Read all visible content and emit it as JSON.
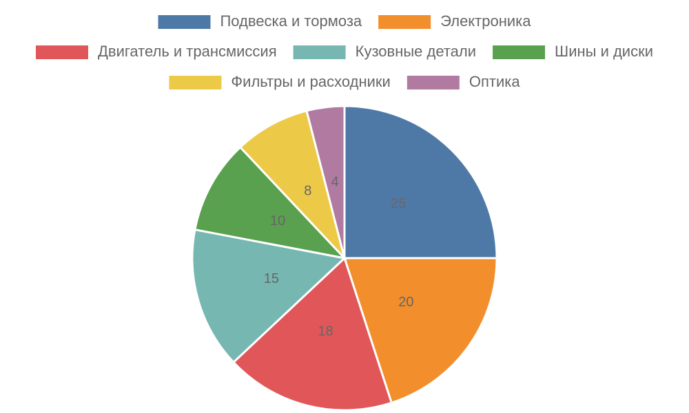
{
  "chart_data": {
    "type": "pie",
    "categories": [
      "Подвеска и тормоза",
      "Электроника",
      "Двигатель и трансмиссия",
      "Кузовные детали",
      "Шины и диски",
      "Фильтры и расходники",
      "Оптика"
    ],
    "values": [
      25,
      20,
      18,
      15,
      10,
      8,
      4
    ],
    "colors": [
      "#4e79a7",
      "#f28e2b",
      "#e15759",
      "#76b7b2",
      "#59a14f",
      "#edc948",
      "#b07aa1"
    ],
    "legend": "top"
  }
}
